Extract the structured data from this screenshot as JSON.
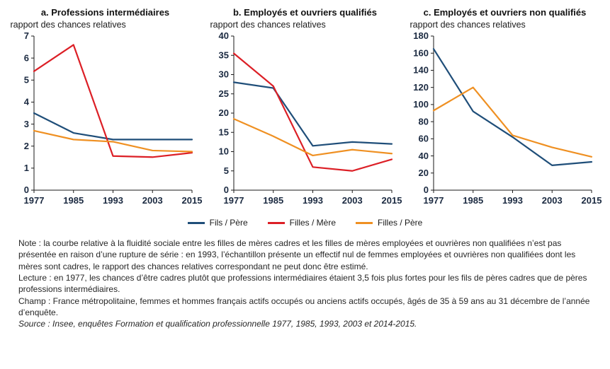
{
  "styles": {
    "axis_color": "#1a1a1a",
    "tick_label_color": "#1b2a41",
    "series_blue": "#1f4e79",
    "series_red": "#dc1f26",
    "series_orange": "#ef9022"
  },
  "chart_data": [
    {
      "type": "line",
      "title": "a. Professions intermédiaires",
      "ylabel": "rapport des chances relatives",
      "xlabel": "",
      "ylim": [
        0,
        7
      ],
      "ystep": 1,
      "grid": false,
      "legend_position": "bottom-shared",
      "categories": [
        "1977",
        "1985",
        "1993",
        "2003",
        "2015"
      ],
      "series": [
        {
          "name": "Fils / Père",
          "color": "#1f4e79",
          "values": [
            3.5,
            2.6,
            2.3,
            2.3,
            2.3
          ]
        },
        {
          "name": "Filles / Mère",
          "color": "#dc1f26",
          "values": [
            5.4,
            6.6,
            1.55,
            1.5,
            1.7
          ]
        },
        {
          "name": "Filles / Père",
          "color": "#ef9022",
          "values": [
            2.7,
            2.3,
            2.2,
            1.8,
            1.75
          ]
        }
      ]
    },
    {
      "type": "line",
      "title": "b. Employés et ouvriers qualifiés",
      "ylabel": "rapport des chances relatives",
      "xlabel": "",
      "ylim": [
        0,
        40
      ],
      "ystep": 5,
      "grid": false,
      "legend_position": "bottom-shared",
      "categories": [
        "1977",
        "1985",
        "1993",
        "2003",
        "2015"
      ],
      "series": [
        {
          "name": "Fils / Père",
          "color": "#1f4e79",
          "values": [
            28,
            26.5,
            11.5,
            12.5,
            12
          ]
        },
        {
          "name": "Filles / Mère",
          "color": "#dc1f26",
          "values": [
            35.5,
            27,
            6,
            5,
            8
          ]
        },
        {
          "name": "Filles / Père",
          "color": "#ef9022",
          "values": [
            18.5,
            14,
            9,
            10.5,
            9.5
          ]
        }
      ]
    },
    {
      "type": "line",
      "title": "c. Employés et ouvriers non qualifiés",
      "ylabel": "rapport des chances relatives",
      "xlabel": "",
      "ylim": [
        0,
        180
      ],
      "ystep": 20,
      "grid": false,
      "legend_position": "bottom-shared",
      "categories": [
        "1977",
        "1985",
        "1993",
        "2003",
        "2015"
      ],
      "series": [
        {
          "name": "Fils / Père",
          "color": "#1f4e79",
          "values": [
            165,
            92,
            62,
            29,
            33
          ]
        },
        {
          "name": "Filles / Père",
          "color": "#ef9022",
          "values": [
            93,
            120,
            64,
            50,
            39
          ]
        }
      ]
    }
  ],
  "legend": {
    "items": [
      {
        "label": "Fils / Père",
        "color": "#1f4e79"
      },
      {
        "label": "Filles / Mère",
        "color": "#dc1f26"
      },
      {
        "label": "Filles / Père",
        "color": "#ef9022"
      }
    ]
  },
  "notes": {
    "note": "Note : la courbe relative à la fluidité sociale entre les filles de mères cadres et les filles de mères employées et ouvrières non qualifiées n’est pas présentée en raison d’une rupture de série : en 1993, l’échantillon présente un effectif nul de femmes employées et ouvrières non qualifiées dont les mères sont cadres, le rapport des chances relatives correspondant ne peut donc être estimé.",
    "lecture": "Lecture : en 1977, les chances d’être cadres plutôt que professions intermédiaires étaient 3,5 fois plus fortes pour les fils de pères cadres que de pères professions intermédiaires.",
    "champ": "Champ : France métropolitaine, femmes et hommes français actifs occupés ou anciens actifs occupés, âgés de 35 à 59 ans au 31 décembre de l’année d’enquête.",
    "source": "Source : Insee, enquêtes Formation et qualification professionnelle 1977, 1985, 1993, 2003 et 2014-2015."
  }
}
